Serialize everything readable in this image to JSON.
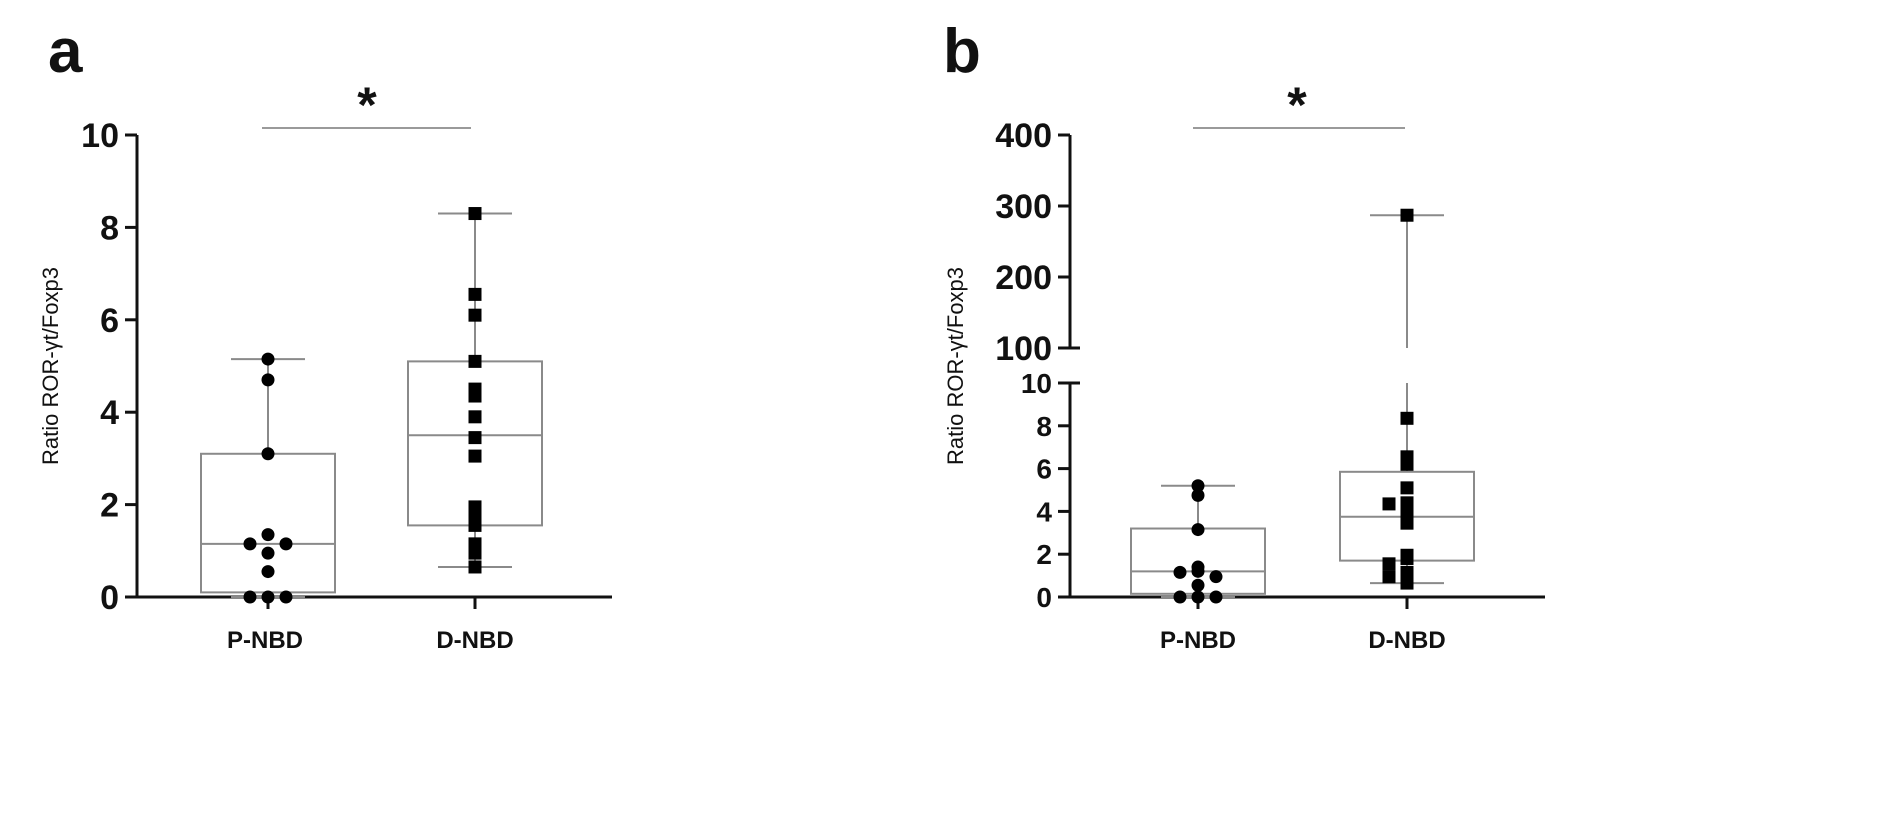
{
  "panels": [
    {
      "label": "a",
      "ylabel": "Ratio ROR-γt/Foxp3",
      "significance": "*",
      "categories": [
        "P-NBD",
        "D-NBD"
      ],
      "y_ticks": [
        "0",
        "2",
        "4",
        "6",
        "8",
        "10"
      ]
    },
    {
      "label": "b",
      "ylabel": "Ratio ROR-γt/Foxp3",
      "significance": "*",
      "categories": [
        "P-NBD",
        "D-NBD"
      ],
      "y_ticks_lower": [
        "0",
        "2",
        "4",
        "6",
        "8",
        "10"
      ],
      "y_ticks_upper": [
        "100",
        "200",
        "300",
        "400"
      ]
    }
  ],
  "chart_data": [
    {
      "type": "box",
      "ylim": [
        0,
        10
      ],
      "broken_axis": false,
      "categories": [
        "P-NBD",
        "D-NBD"
      ],
      "series": [
        {
          "category": "P-NBD",
          "marker": "circle",
          "box": {
            "min": 0.0,
            "q1": 0.1,
            "median": 1.15,
            "q3": 3.1,
            "max": 5.15
          },
          "points": [
            5.15,
            4.7,
            3.1,
            1.35,
            1.15,
            1.15,
            0.95,
            0.55,
            0.0,
            0.0,
            0.0
          ]
        },
        {
          "category": "D-NBD",
          "marker": "square",
          "box": {
            "min": 0.65,
            "q1": 1.55,
            "median": 3.5,
            "q3": 5.1,
            "max": 8.3
          },
          "points": [
            8.3,
            6.55,
            6.1,
            5.1,
            4.5,
            4.35,
            3.9,
            3.45,
            3.05,
            1.95,
            1.8,
            1.55,
            1.15,
            0.95,
            0.65
          ]
        }
      ],
      "significance": {
        "between": [
          "P-NBD",
          "D-NBD"
        ],
        "label": "*"
      }
    },
    {
      "type": "box",
      "broken_axis": true,
      "y_segments": [
        [
          0,
          10
        ],
        [
          100,
          400
        ]
      ],
      "categories": [
        "P-NBD",
        "D-NBD"
      ],
      "series": [
        {
          "category": "P-NBD",
          "marker": "circle",
          "box": {
            "min": 0.0,
            "q1": 0.15,
            "median": 1.2,
            "q3": 3.2,
            "max": 5.2
          },
          "points": [
            5.2,
            4.75,
            3.15,
            1.4,
            1.2,
            1.15,
            0.95,
            0.55,
            0.0,
            0.0,
            0.0
          ]
        },
        {
          "category": "D-NBD",
          "marker": "square",
          "box": {
            "min": 0.65,
            "q1": 1.7,
            "median": 3.75,
            "q3": 5.85,
            "max": 287
          },
          "points": [
            287,
            8.35,
            6.55,
            6.2,
            5.1,
            4.4,
            4.35,
            3.9,
            3.45,
            1.95,
            1.8,
            1.55,
            1.15,
            0.95,
            0.65
          ]
        }
      ],
      "significance": {
        "between": [
          "P-NBD",
          "D-NBD"
        ],
        "label": "*"
      }
    }
  ]
}
